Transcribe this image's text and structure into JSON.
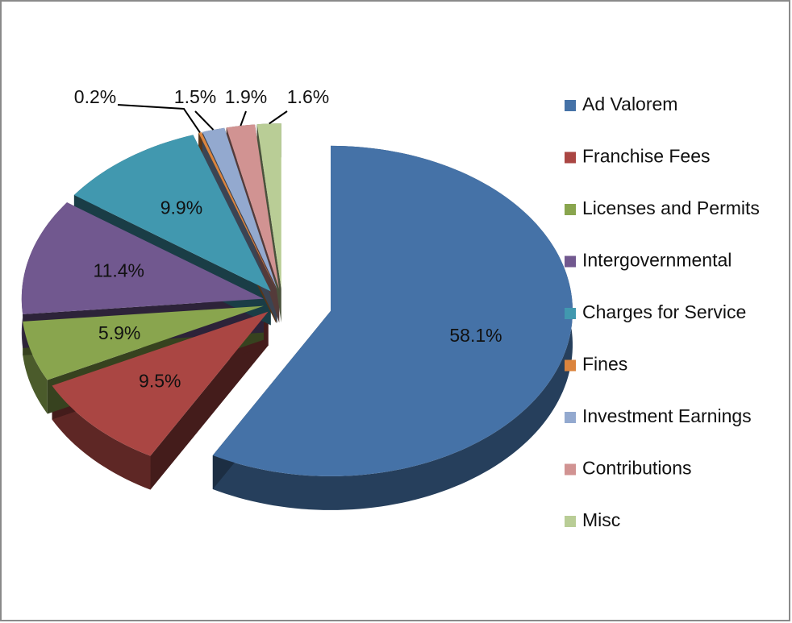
{
  "chart_data": {
    "type": "pie",
    "categories": [
      "Ad Valorem",
      "Franchise Fees",
      "Licenses and Permits",
      "Intergovernmental",
      "Charges for Service",
      "Fines",
      "Investment Earnings",
      "Contributions",
      "Misc"
    ],
    "values": [
      58.1,
      9.5,
      5.9,
      11.4,
      9.9,
      0.2,
      1.5,
      1.9,
      1.6
    ],
    "value_labels": [
      "58.1%",
      "9.5%",
      "5.9%",
      "11.4%",
      "9.9%",
      "0.2%",
      "1.5%",
      "1.9%",
      "1.6%"
    ],
    "colors": [
      "#4572a7",
      "#aa4643",
      "#89a54e",
      "#71588f",
      "#4198af",
      "#db843d",
      "#93a9cf",
      "#d19392",
      "#b9cd96"
    ],
    "legend": "right"
  }
}
